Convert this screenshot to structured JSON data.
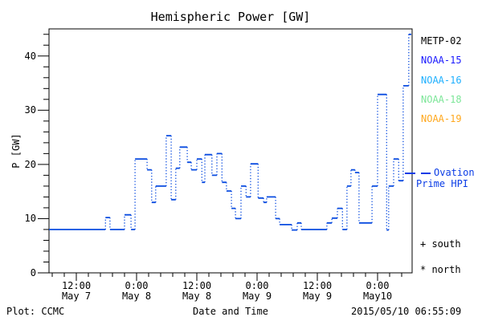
{
  "chart_data": {
    "type": "line",
    "title": "Hemispheric Power [GW]",
    "xlabel": "Date and Time",
    "ylabel": "P [GW]",
    "grid": false,
    "x_axis": {
      "epoch": "hours since 2015-05-07 00:00",
      "range_hours": [
        6.56,
        78.88
      ],
      "major_ticks": [
        {
          "t": 12,
          "time": "12:00",
          "date": "May 7"
        },
        {
          "t": 24,
          "time": "0:00",
          "date": "May 8"
        },
        {
          "t": 36,
          "time": "12:00",
          "date": "May 8"
        },
        {
          "t": 48,
          "time": "0:00",
          "date": "May 9"
        },
        {
          "t": 60,
          "time": "12:00",
          "date": "May 9"
        },
        {
          "t": 72,
          "time": "0:00",
          "date": "May10"
        }
      ],
      "minor_tick_step_hours": 2.4
    },
    "y_axis": {
      "range": [
        0,
        45
      ],
      "major_ticks": [
        0,
        10,
        20,
        30,
        40
      ],
      "minor_tick_step": 2
    },
    "series": [
      {
        "name": "Ovation Prime HPI",
        "units": "GW",
        "color": "#0a4ce0",
        "line_style": "step: solid horizontal runs, dotted vertical transitions",
        "points_t_hours_vs_GW": [
          [
            6.56,
            8
          ],
          [
            17.8,
            10.2
          ],
          [
            18.7,
            8
          ],
          [
            21.6,
            10.7
          ],
          [
            22.9,
            8
          ],
          [
            23.7,
            21
          ],
          [
            26.1,
            19
          ],
          [
            27.0,
            13
          ],
          [
            27.8,
            16
          ],
          [
            29.9,
            25.3
          ],
          [
            30.9,
            13.5
          ],
          [
            31.8,
            19.3
          ],
          [
            32.6,
            23.2
          ],
          [
            34.1,
            20.4
          ],
          [
            34.9,
            19
          ],
          [
            36.0,
            21
          ],
          [
            37.0,
            16.7
          ],
          [
            37.6,
            21.8
          ],
          [
            39.0,
            18
          ],
          [
            40.0,
            22
          ],
          [
            41.0,
            16.7
          ],
          [
            41.9,
            15.1
          ],
          [
            42.9,
            11.9
          ],
          [
            43.7,
            10
          ],
          [
            44.8,
            16
          ],
          [
            45.8,
            14
          ],
          [
            46.7,
            20.1
          ],
          [
            48.2,
            13.8
          ],
          [
            49.3,
            13
          ],
          [
            49.9,
            14
          ],
          [
            51.7,
            10
          ],
          [
            52.5,
            8.9
          ],
          [
            54.9,
            7.9
          ],
          [
            56.0,
            9.2
          ],
          [
            56.8,
            8
          ],
          [
            61.9,
            9.2
          ],
          [
            62.9,
            10.1
          ],
          [
            64.0,
            11.9
          ],
          [
            65.0,
            8
          ],
          [
            65.9,
            16
          ],
          [
            66.7,
            19
          ],
          [
            67.5,
            18.5
          ],
          [
            68.3,
            9.2
          ],
          [
            70.9,
            16
          ],
          [
            72.0,
            32.9
          ],
          [
            73.8,
            7.9
          ],
          [
            74.2,
            16
          ],
          [
            75.2,
            21
          ],
          [
            76.2,
            17
          ],
          [
            77.1,
            34.5
          ],
          [
            78.2,
            44
          ]
        ],
        "end_t_hours": 78.7
      }
    ],
    "legend": {
      "position": "outside-right-top",
      "items": [
        {
          "label": "METP-02",
          "color": "#000000"
        },
        {
          "label": "NOAA-15",
          "color": "#1a1aff"
        },
        {
          "label": "NOAA-16",
          "color": "#1fb0ff"
        },
        {
          "label": "NOAA-18",
          "color": "#7ce698"
        },
        {
          "label": "NOAA-19",
          "color": "#ffa81e"
        }
      ]
    },
    "annotations": {
      "ovation_label_line1": "Ovation",
      "ovation_label_line2": "Prime HPI",
      "ovation_color": "#0a3ce6",
      "south_marker": "+ south",
      "north_marker": "* north",
      "plot_credit": "Plot: CCMC",
      "timestamp": "2015/05/10 06:55:09"
    }
  }
}
